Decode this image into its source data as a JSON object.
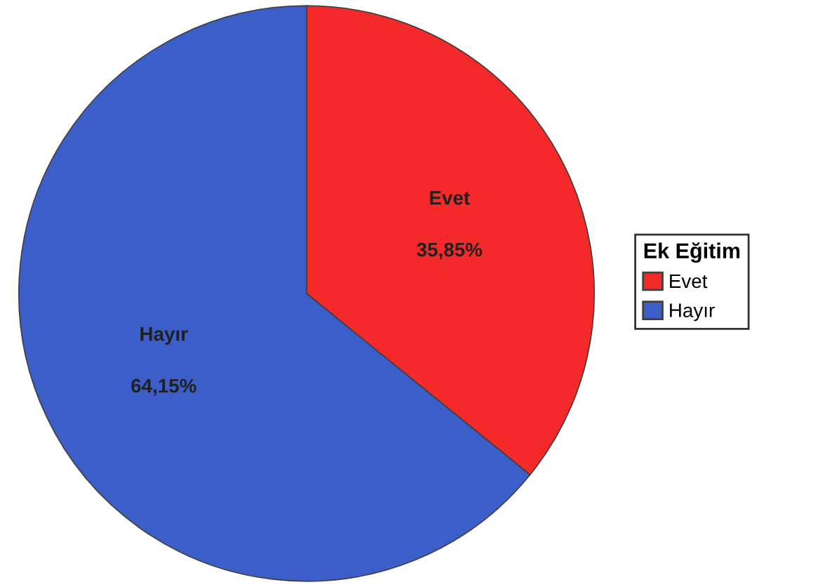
{
  "chart_data": {
    "type": "pie",
    "legend_title": "Ek Eğitim",
    "categories": [
      "Evet",
      "Hayır"
    ],
    "values": [
      35.85,
      64.15
    ],
    "colors": [
      "#f42a2a",
      "#3c5ec8"
    ],
    "value_labels": [
      "35,85%",
      "64,15%"
    ],
    "legend": "right"
  }
}
